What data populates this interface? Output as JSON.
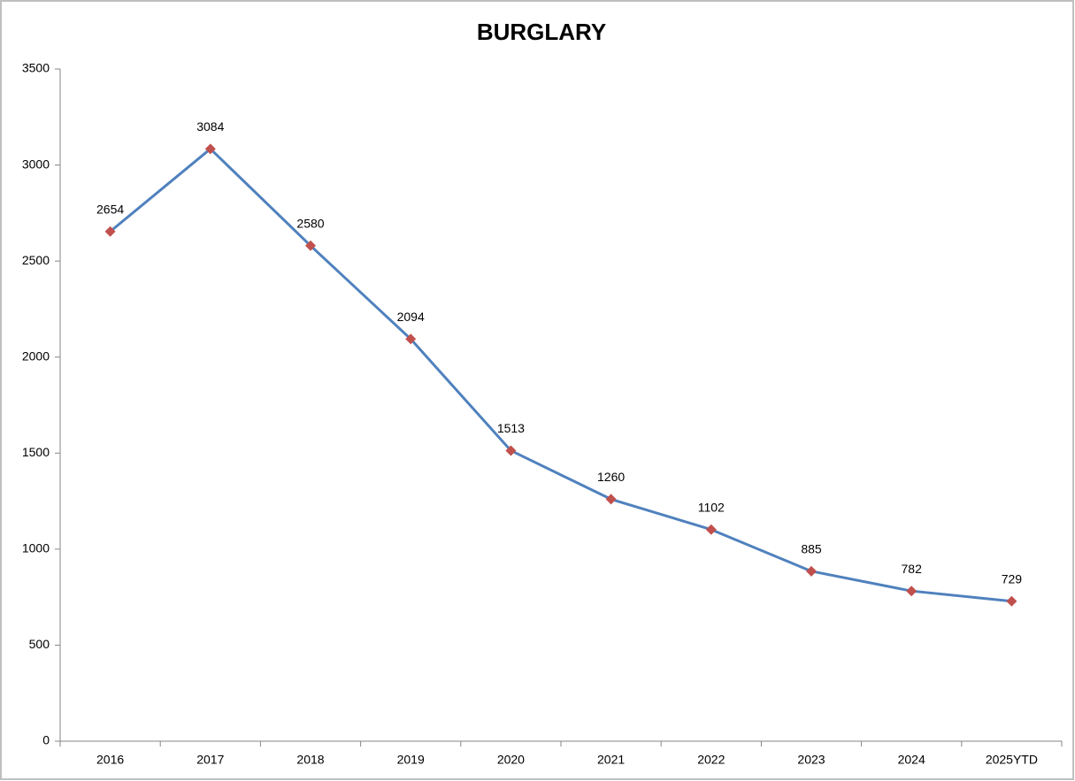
{
  "chart_data": {
    "type": "line",
    "title": "BURGLARY",
    "categories": [
      "2016",
      "2017",
      "2018",
      "2019",
      "2020",
      "2021",
      "2022",
      "2023",
      "2024",
      "2025YTD"
    ],
    "values": [
      2654,
      3084,
      2580,
      2094,
      1513,
      1260,
      1102,
      885,
      782,
      729
    ],
    "color": "#4f81bd",
    "marker_color": "#c0504d",
    "ylim": [
      0,
      3500
    ],
    "yticks": [
      0,
      500,
      1000,
      1500,
      2000,
      2500,
      3000,
      3500
    ],
    "grid": false
  }
}
